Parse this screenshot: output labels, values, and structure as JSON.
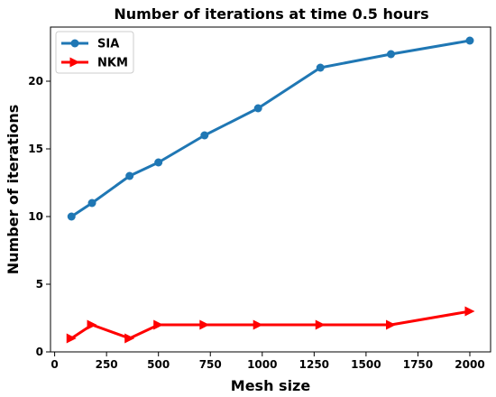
{
  "chart_data": {
    "type": "line",
    "title": "Number of iterations at time 0.5 hours",
    "xlabel": "Mesh size",
    "ylabel": "Number of iterations",
    "xlim": [
      -20,
      2100
    ],
    "ylim": [
      0,
      24
    ],
    "xticks": [
      0,
      250,
      500,
      750,
      1000,
      1250,
      1500,
      1750,
      2000
    ],
    "yticks": [
      0,
      5,
      10,
      15,
      20
    ],
    "grid": false,
    "legend_position": "top-left",
    "series": [
      {
        "name": "SIA",
        "color": "#1f77b4",
        "marker": "circle",
        "x": [
          81,
          180,
          361,
          500,
          722,
          980,
          1280,
          1620,
          2000
        ],
        "y": [
          10,
          11,
          13,
          14,
          16,
          18,
          21,
          22,
          23
        ]
      },
      {
        "name": "NKM",
        "color": "#ff0000",
        "marker": "triangle-right",
        "x": [
          81,
          180,
          361,
          500,
          722,
          980,
          1280,
          1620,
          2000
        ],
        "y": [
          1,
          2,
          1,
          2,
          2,
          2,
          2,
          2,
          3
        ]
      }
    ]
  }
}
